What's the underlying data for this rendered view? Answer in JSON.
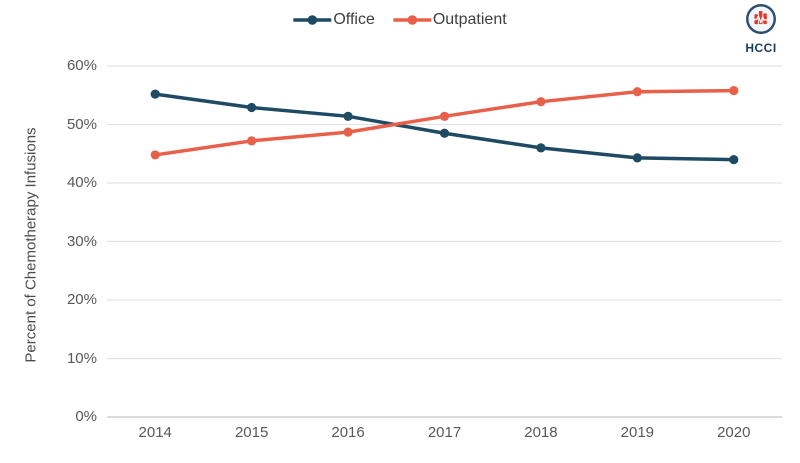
{
  "logo": {
    "text": "HCCI",
    "icon": "hcci-bars-pulse-icon",
    "ring_color": "#2d4d71",
    "circle_fill": "#f2f6fa",
    "bar_color": "#e03c2e",
    "pulse_color": "#ffffff",
    "text_color": "#1d3e63"
  },
  "colors": {
    "grid": "#e3e3e3",
    "axis_line": "#c6c6c6",
    "tick_label": "#595959",
    "legend_text": "#3f3f3f"
  },
  "chart_data": {
    "type": "line",
    "title": "",
    "xlabel": "",
    "ylabel": "Percent of Chemotherapy Infusions",
    "categories": [
      "2014",
      "2015",
      "2016",
      "2017",
      "2018",
      "2019",
      "2020"
    ],
    "series": [
      {
        "name": "Office",
        "color": "#1e4a63",
        "values": [
          55.2,
          52.9,
          51.4,
          48.5,
          46.0,
          44.3,
          44.0
        ]
      },
      {
        "name": "Outpatient",
        "color": "#e8604a",
        "values": [
          44.8,
          47.2,
          48.7,
          51.4,
          53.9,
          55.6,
          55.8
        ]
      }
    ],
    "ylim": [
      0,
      60
    ],
    "ytick_step": 10,
    "yticks": [
      "0%",
      "10%",
      "20%",
      "30%",
      "40%",
      "50%",
      "60%"
    ],
    "grid": "horizontal",
    "legend_position": "top-center",
    "marker": "circle"
  }
}
